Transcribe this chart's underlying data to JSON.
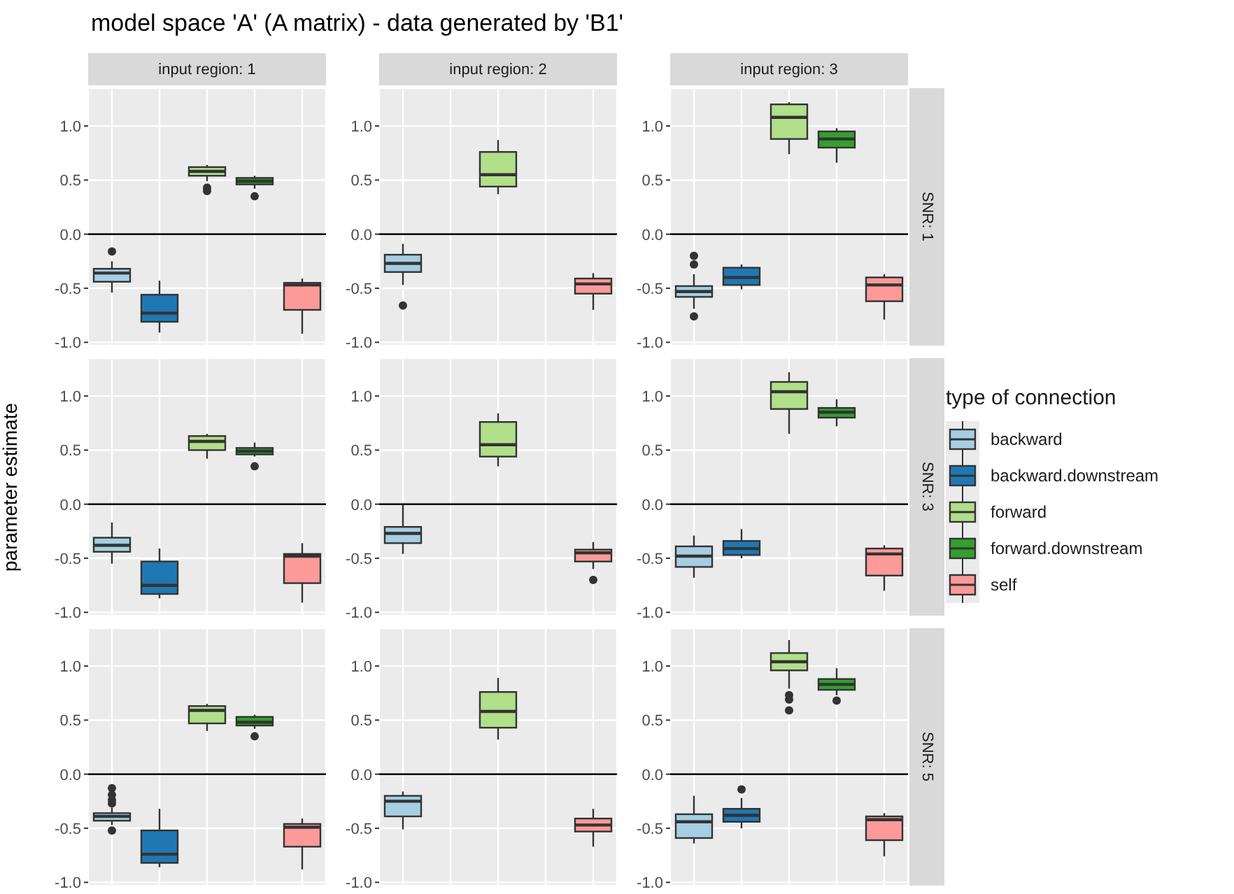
{
  "chart_data": [
    {
      "type": "box",
      "title": "model space 'A' (A matrix) - data generated by 'B1'",
      "subtitle": "input region: 1",
      "categories": [
        null,
        null,
        null,
        null,
        null
      ],
      "ylim": [
        -1.03,
        1.35
      ],
      "yticks": [
        {
          "value": -1,
          "label": "-1.0"
        },
        {
          "value": -0.5,
          "label": "-0.5"
        },
        {
          "value": 0,
          "label": "0.0"
        },
        {
          "value": 0.5,
          "label": "0.5"
        },
        {
          "value": 1,
          "label": "1.0"
        }
      ],
      "grid": true,
      "ref_lines": [
        {
          "axis": "y",
          "value": 0,
          "color": "#000000"
        }
      ],
      "series": [
        {
          "color": "#a6cee3",
          "boxes": [
            {
              "low": -0.54,
              "q1": -0.44,
              "median": -0.36,
              "q3": -0.32,
              "high": -0.25,
              "outliers": [
                -0.16
              ]
            },
            null,
            null,
            null,
            null
          ]
        },
        {
          "color": "#1f78b4",
          "boxes": [
            null,
            {
              "low": -0.91,
              "q1": -0.81,
              "median": -0.73,
              "q3": -0.56,
              "high": -0.43
            },
            null,
            null,
            null
          ]
        },
        {
          "color": "#b2df8a",
          "boxes": [
            null,
            null,
            {
              "low": 0.49,
              "q1": 0.54,
              "median": 0.58,
              "q3": 0.62,
              "high": 0.64,
              "outliers": [
                0.43,
                0.4
              ]
            },
            null,
            null
          ]
        },
        {
          "color": "#33a02c",
          "boxes": [
            null,
            null,
            null,
            {
              "low": 0.42,
              "q1": 0.46,
              "median": 0.49,
              "q3": 0.52,
              "high": 0.54,
              "outliers": [
                0.35
              ]
            },
            null
          ]
        },
        {
          "color": "#fb9a99",
          "boxes": [
            null,
            null,
            null,
            null,
            {
              "low": -0.92,
              "q1": -0.7,
              "median": -0.47,
              "q3": -0.45,
              "high": -0.41
            }
          ]
        }
      ]
    },
    {
      "type": "box",
      "subtitle": "input region: 2",
      "categories": [
        null,
        null,
        null,
        null,
        null
      ],
      "ylim": [
        -1.03,
        1.35
      ],
      "yticks": [
        {
          "value": -1,
          "label": "-1.0"
        },
        {
          "value": -0.5,
          "label": "-0.5"
        },
        {
          "value": 0,
          "label": "0.0"
        },
        {
          "value": 0.5,
          "label": "0.5"
        },
        {
          "value": 1,
          "label": "1.0"
        }
      ],
      "grid": true,
      "ref_lines": [
        {
          "axis": "y",
          "value": 0,
          "color": "#000000"
        }
      ],
      "series": [
        {
          "color": "#a6cee3",
          "boxes": [
            {
              "low": -0.47,
              "q1": -0.35,
              "median": -0.27,
              "q3": -0.19,
              "high": -0.09,
              "outliers": [
                -0.66
              ]
            },
            null,
            null,
            null,
            null
          ]
        },
        {
          "color": "#b2df8a",
          "boxes": [
            null,
            null,
            {
              "low": 0.37,
              "q1": 0.44,
              "median": 0.55,
              "q3": 0.76,
              "high": 0.87
            },
            null,
            null
          ]
        },
        {
          "color": "#fb9a99",
          "boxes": [
            null,
            null,
            null,
            null,
            {
              "low": -0.7,
              "q1": -0.55,
              "median": -0.46,
              "q3": -0.41,
              "high": -0.36
            }
          ]
        }
      ]
    },
    {
      "type": "box",
      "subtitle": "input region: 3",
      "y2label": "SNR: 1",
      "categories": [
        null,
        null,
        null,
        null,
        null
      ],
      "ylim": [
        -1.03,
        1.35
      ],
      "yticks": [
        {
          "value": -1,
          "label": "-1.0"
        },
        {
          "value": -0.5,
          "label": "-0.5"
        },
        {
          "value": 0,
          "label": "0.0"
        },
        {
          "value": 0.5,
          "label": "0.5"
        },
        {
          "value": 1,
          "label": "1.0"
        }
      ],
      "grid": true,
      "ref_lines": [
        {
          "axis": "y",
          "value": 0,
          "color": "#000000"
        }
      ],
      "series": [
        {
          "color": "#a6cee3",
          "boxes": [
            {
              "low": -0.69,
              "q1": -0.58,
              "median": -0.53,
              "q3": -0.48,
              "high": -0.37,
              "outliers": [
                -0.2,
                -0.28,
                -0.76
              ]
            },
            null,
            null,
            null,
            null
          ]
        },
        {
          "color": "#1f78b4",
          "boxes": [
            null,
            {
              "low": -0.51,
              "q1": -0.47,
              "median": -0.4,
              "q3": -0.31,
              "high": -0.28
            },
            null,
            null,
            null
          ]
        },
        {
          "color": "#b2df8a",
          "boxes": [
            null,
            null,
            {
              "low": 0.74,
              "q1": 0.88,
              "median": 1.08,
              "q3": 1.2,
              "high": 1.22
            },
            null,
            null
          ]
        },
        {
          "color": "#33a02c",
          "boxes": [
            null,
            null,
            null,
            {
              "low": 0.66,
              "q1": 0.8,
              "median": 0.88,
              "q3": 0.95,
              "high": 0.98
            },
            null
          ]
        },
        {
          "color": "#fb9a99",
          "boxes": [
            null,
            null,
            null,
            null,
            {
              "low": -0.79,
              "q1": -0.62,
              "median": -0.47,
              "q3": -0.4,
              "high": -0.37
            }
          ]
        }
      ]
    },
    {
      "type": "box",
      "ylabel": "parameter estimate",
      "categories": [
        null,
        null,
        null,
        null,
        null
      ],
      "ylim": [
        -1.03,
        1.35
      ],
      "yticks": [
        {
          "value": -1,
          "label": "-1.0"
        },
        {
          "value": -0.5,
          "label": "-0.5"
        },
        {
          "value": 0,
          "label": "0.0"
        },
        {
          "value": 0.5,
          "label": "0.5"
        },
        {
          "value": 1,
          "label": "1.0"
        }
      ],
      "grid": true,
      "ref_lines": [
        {
          "axis": "y",
          "value": 0,
          "color": "#000000"
        }
      ],
      "series": [
        {
          "color": "#a6cee3",
          "boxes": [
            {
              "low": -0.55,
              "q1": -0.44,
              "median": -0.38,
              "q3": -0.31,
              "high": -0.17
            },
            null,
            null,
            null,
            null
          ]
        },
        {
          "color": "#1f78b4",
          "boxes": [
            null,
            {
              "low": -0.87,
              "q1": -0.83,
              "median": -0.75,
              "q3": -0.53,
              "high": -0.41
            },
            null,
            null,
            null
          ]
        },
        {
          "color": "#b2df8a",
          "boxes": [
            null,
            null,
            {
              "low": 0.42,
              "q1": 0.5,
              "median": 0.58,
              "q3": 0.63,
              "high": 0.65
            },
            null,
            null
          ]
        },
        {
          "color": "#33a02c",
          "boxes": [
            null,
            null,
            null,
            {
              "low": 0.44,
              "q1": 0.46,
              "median": 0.49,
              "q3": 0.52,
              "high": 0.57,
              "outliers": [
                0.35
              ]
            },
            null
          ]
        },
        {
          "color": "#fb9a99",
          "boxes": [
            null,
            null,
            null,
            null,
            {
              "low": -0.91,
              "q1": -0.73,
              "median": -0.48,
              "q3": -0.46,
              "high": -0.36
            }
          ]
        }
      ]
    },
    {
      "type": "box",
      "categories": [
        null,
        null,
        null,
        null,
        null
      ],
      "ylim": [
        -1.03,
        1.35
      ],
      "yticks": [
        {
          "value": -1,
          "label": "-1.0"
        },
        {
          "value": -0.5,
          "label": "-0.5"
        },
        {
          "value": 0,
          "label": "0.0"
        },
        {
          "value": 0.5,
          "label": "0.5"
        },
        {
          "value": 1,
          "label": "1.0"
        }
      ],
      "grid": true,
      "ref_lines": [
        {
          "axis": "y",
          "value": 0,
          "color": "#000000"
        }
      ],
      "series": [
        {
          "color": "#a6cee3",
          "boxes": [
            {
              "low": -0.46,
              "q1": -0.36,
              "median": -0.27,
              "q3": -0.21,
              "high": 0
            },
            null,
            null,
            null,
            null
          ]
        },
        {
          "color": "#b2df8a",
          "boxes": [
            null,
            null,
            {
              "low": 0.35,
              "q1": 0.44,
              "median": 0.55,
              "q3": 0.76,
              "high": 0.84
            },
            null,
            null
          ]
        },
        {
          "color": "#fb9a99",
          "boxes": [
            null,
            null,
            null,
            null,
            {
              "low": -0.6,
              "q1": -0.53,
              "median": -0.45,
              "q3": -0.42,
              "high": -0.35,
              "outliers": [
                -0.7
              ]
            }
          ]
        }
      ]
    },
    {
      "type": "box",
      "y2label": "SNR: 3",
      "legend": "right",
      "legend_title": "type of connection",
      "categories": [
        null,
        null,
        null,
        null,
        null
      ],
      "ylim": [
        -1.03,
        1.35
      ],
      "yticks": [
        {
          "value": -1,
          "label": "-1.0"
        },
        {
          "value": -0.5,
          "label": "-0.5"
        },
        {
          "value": 0,
          "label": "0.0"
        },
        {
          "value": 0.5,
          "label": "0.5"
        },
        {
          "value": 1,
          "label": "1.0"
        }
      ],
      "grid": true,
      "ref_lines": [
        {
          "axis": "y",
          "value": 0,
          "color": "#000000"
        }
      ],
      "series": [
        {
          "name": "backward",
          "color": "#a6cee3",
          "boxes": [
            {
              "low": -0.68,
              "q1": -0.58,
              "median": -0.48,
              "q3": -0.39,
              "high": -0.29
            },
            null,
            null,
            null,
            null
          ]
        },
        {
          "name": "backward.downstream",
          "color": "#1f78b4",
          "boxes": [
            null,
            {
              "low": -0.5,
              "q1": -0.47,
              "median": -0.41,
              "q3": -0.34,
              "high": -0.23
            },
            null,
            null,
            null
          ]
        },
        {
          "name": "forward",
          "color": "#b2df8a",
          "boxes": [
            null,
            null,
            {
              "low": 0.65,
              "q1": 0.88,
              "median": 1.04,
              "q3": 1.13,
              "high": 1.22
            },
            null,
            null
          ]
        },
        {
          "name": "forward.downstream",
          "color": "#33a02c",
          "boxes": [
            null,
            null,
            null,
            {
              "low": 0.72,
              "q1": 0.8,
              "median": 0.85,
              "q3": 0.89,
              "high": 0.97
            },
            null
          ]
        },
        {
          "name": "self",
          "color": "#fb9a99",
          "boxes": [
            null,
            null,
            null,
            null,
            {
              "low": -0.8,
              "q1": -0.66,
              "median": -0.46,
              "q3": -0.41,
              "high": -0.38
            }
          ]
        }
      ]
    },
    {
      "type": "box",
      "categories": [
        null,
        null,
        null,
        null,
        null
      ],
      "ylim": [
        -1.03,
        1.35
      ],
      "yticks": [
        {
          "value": -1,
          "label": "-1.0"
        },
        {
          "value": -0.5,
          "label": "-0.5"
        },
        {
          "value": 0,
          "label": "0.0"
        },
        {
          "value": 0.5,
          "label": "0.5"
        },
        {
          "value": 1,
          "label": "1.0"
        }
      ],
      "grid": true,
      "ref_lines": [
        {
          "axis": "y",
          "value": 0,
          "color": "#000000"
        }
      ],
      "series": [
        {
          "color": "#a6cee3",
          "boxes": [
            {
              "low": -0.47,
              "q1": -0.43,
              "median": -0.39,
              "q3": -0.36,
              "high": -0.31,
              "outliers": [
                -0.13,
                -0.19,
                -0.24,
                -0.27,
                -0.52
              ]
            },
            null,
            null,
            null,
            null
          ]
        },
        {
          "color": "#1f78b4",
          "boxes": [
            null,
            {
              "low": -0.86,
              "q1": -0.82,
              "median": -0.74,
              "q3": -0.52,
              "high": -0.32
            },
            null,
            null,
            null
          ]
        },
        {
          "color": "#b2df8a",
          "boxes": [
            null,
            null,
            {
              "low": 0.4,
              "q1": 0.47,
              "median": 0.59,
              "q3": 0.63,
              "high": 0.65
            },
            null,
            null
          ]
        },
        {
          "color": "#33a02c",
          "boxes": [
            null,
            null,
            null,
            {
              "low": 0.42,
              "q1": 0.45,
              "median": 0.48,
              "q3": 0.53,
              "high": 0.55,
              "outliers": [
                0.35
              ]
            },
            null
          ]
        },
        {
          "color": "#fb9a99",
          "boxes": [
            null,
            null,
            null,
            null,
            {
              "low": -0.88,
              "q1": -0.67,
              "median": -0.49,
              "q3": -0.46,
              "high": -0.41
            }
          ]
        }
      ]
    },
    {
      "type": "box",
      "categories": [
        null,
        null,
        null,
        null,
        null
      ],
      "ylim": [
        -1.03,
        1.35
      ],
      "yticks": [
        {
          "value": -1,
          "label": "-1.0"
        },
        {
          "value": -0.5,
          "label": "-0.5"
        },
        {
          "value": 0,
          "label": "0.0"
        },
        {
          "value": 0.5,
          "label": "0.5"
        },
        {
          "value": 1,
          "label": "1.0"
        }
      ],
      "grid": true,
      "ref_lines": [
        {
          "axis": "y",
          "value": 0,
          "color": "#000000"
        }
      ],
      "series": [
        {
          "color": "#a6cee3",
          "boxes": [
            {
              "low": -0.51,
              "q1": -0.39,
              "median": -0.25,
              "q3": -0.2,
              "high": -0.16
            },
            null,
            null,
            null,
            null
          ]
        },
        {
          "color": "#b2df8a",
          "boxes": [
            null,
            null,
            {
              "low": 0.32,
              "q1": 0.43,
              "median": 0.58,
              "q3": 0.76,
              "high": 0.89
            },
            null,
            null
          ]
        },
        {
          "color": "#fb9a99",
          "boxes": [
            null,
            null,
            null,
            null,
            {
              "low": -0.67,
              "q1": -0.53,
              "median": -0.47,
              "q3": -0.41,
              "high": -0.32
            }
          ]
        }
      ]
    },
    {
      "type": "box",
      "y2label": "SNR: 5",
      "categories": [
        null,
        null,
        null,
        null,
        null
      ],
      "ylim": [
        -1.03,
        1.35
      ],
      "yticks": [
        {
          "value": -1,
          "label": "-1.0"
        },
        {
          "value": -0.5,
          "label": "-0.5"
        },
        {
          "value": 0,
          "label": "0.0"
        },
        {
          "value": 0.5,
          "label": "0.5"
        },
        {
          "value": 1,
          "label": "1.0"
        }
      ],
      "grid": true,
      "ref_lines": [
        {
          "axis": "y",
          "value": 0,
          "color": "#000000"
        }
      ],
      "series": [
        {
          "color": "#a6cee3",
          "boxes": [
            {
              "low": -0.64,
              "q1": -0.59,
              "median": -0.44,
              "q3": -0.37,
              "high": -0.2
            },
            null,
            null,
            null,
            null
          ]
        },
        {
          "color": "#1f78b4",
          "boxes": [
            null,
            {
              "low": -0.5,
              "q1": -0.44,
              "median": -0.38,
              "q3": -0.32,
              "high": -0.22,
              "outliers": [
                -0.14
              ]
            },
            null,
            null,
            null
          ]
        },
        {
          "color": "#b2df8a",
          "boxes": [
            null,
            null,
            {
              "low": 0.79,
              "q1": 0.96,
              "median": 1.04,
              "q3": 1.12,
              "high": 1.24,
              "outliers": [
                0.73,
                0.69,
                0.59
              ]
            },
            null,
            null
          ]
        },
        {
          "color": "#33a02c",
          "boxes": [
            null,
            null,
            null,
            {
              "low": 0.73,
              "q1": 0.78,
              "median": 0.83,
              "q3": 0.88,
              "high": 0.98,
              "outliers": [
                0.68
              ]
            },
            null
          ]
        },
        {
          "color": "#fb9a99",
          "boxes": [
            null,
            null,
            null,
            null,
            {
              "low": -0.76,
              "q1": -0.61,
              "median": -0.42,
              "q3": -0.39,
              "high": -0.36
            }
          ]
        }
      ]
    }
  ]
}
